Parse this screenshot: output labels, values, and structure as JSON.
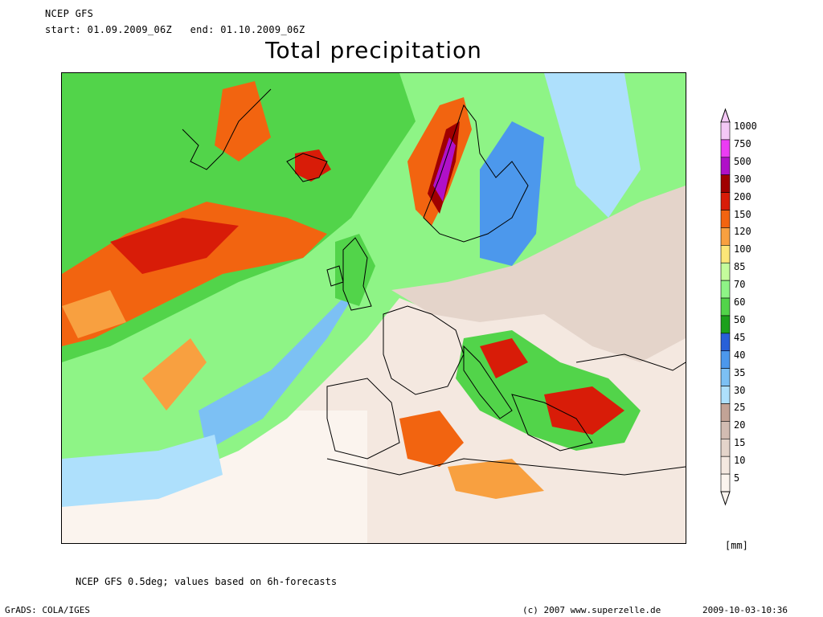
{
  "header": {
    "model": "NCEP GFS",
    "period": "start: 01.09.2009_06Z   end: 01.10.2009_06Z",
    "title": "Total precipitation"
  },
  "legend": {
    "unit": "[mm]",
    "levels": [
      "1000",
      "750",
      "500",
      "300",
      "200",
      "150",
      "120",
      "100",
      "85",
      "70",
      "60",
      "50",
      "45",
      "40",
      "35",
      "30",
      "25",
      "20",
      "15",
      "10",
      "5"
    ],
    "colors": [
      "#f4c8f6",
      "#ec3cf4",
      "#b010c8",
      "#a00000",
      "#d81c08",
      "#f26410",
      "#f8a040",
      "#fce678",
      "#c4fc9c",
      "#8ef486",
      "#52d44a",
      "#1ca01c",
      "#2860d8",
      "#4c98ec",
      "#7cc0f4",
      "#aee0fc",
      "#c2a396",
      "#d2bcb2",
      "#e4d4ca",
      "#f4e8e0",
      "#fbf4ee"
    ]
  },
  "footer": {
    "footnote": "NCEP GFS 0.5deg; values based on 6h-forecasts",
    "grads": "GrADS: COLA/IGES",
    "copyright": "(c) 2007 www.superzelle.de",
    "timestamp": "2009-10-03-10:36"
  }
}
